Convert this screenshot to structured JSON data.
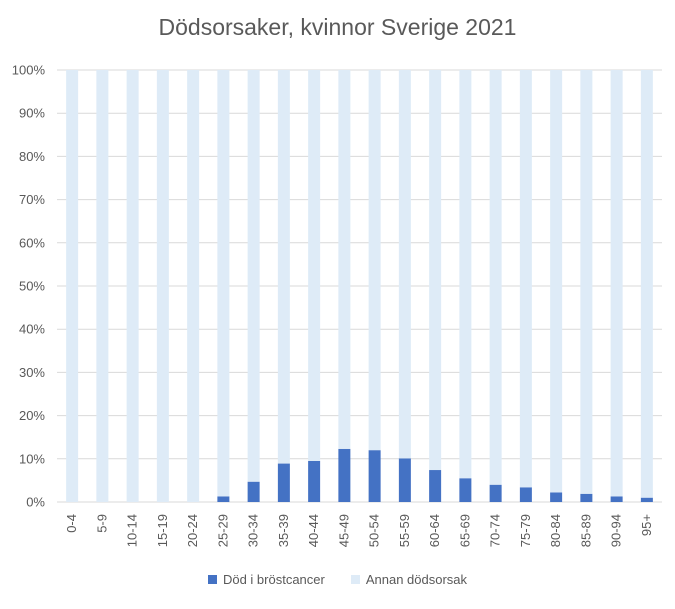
{
  "chart_data": {
    "type": "bar",
    "stacked": true,
    "title": "Dödsorsaker, kvinnor Sverige 2021",
    "categories": [
      "0-4",
      "5-9",
      "10-14",
      "15-19",
      "20-24",
      "25-29",
      "30-34",
      "35-39",
      "40-44",
      "45-49",
      "50-54",
      "55-59",
      "60-64",
      "65-69",
      "70-74",
      "75-79",
      "80-84",
      "85-89",
      "90-94",
      "95+"
    ],
    "series": [
      {
        "name": "Död i bröstcancer",
        "color": "#4472C4",
        "values": [
          0,
          0,
          0,
          0,
          0,
          1.3,
          4.7,
          8.9,
          9.5,
          12.3,
          12.0,
          10.1,
          7.4,
          5.5,
          4.0,
          3.4,
          2.2,
          1.9,
          1.3,
          1.0
        ]
      },
      {
        "name": "Annan dödsorsak",
        "color": "#DEEBF7",
        "values": [
          100,
          100,
          100,
          100,
          100,
          98.7,
          95.3,
          91.1,
          90.5,
          87.7,
          88.0,
          89.9,
          92.6,
          94.5,
          96.0,
          96.6,
          97.8,
          98.1,
          98.7,
          99.0
        ]
      }
    ],
    "yticks": [
      "0%",
      "10%",
      "20%",
      "30%",
      "40%",
      "50%",
      "60%",
      "70%",
      "80%",
      "90%",
      "100%"
    ],
    "ylim": [
      0,
      100
    ],
    "grid": true,
    "legend": "bottom"
  }
}
